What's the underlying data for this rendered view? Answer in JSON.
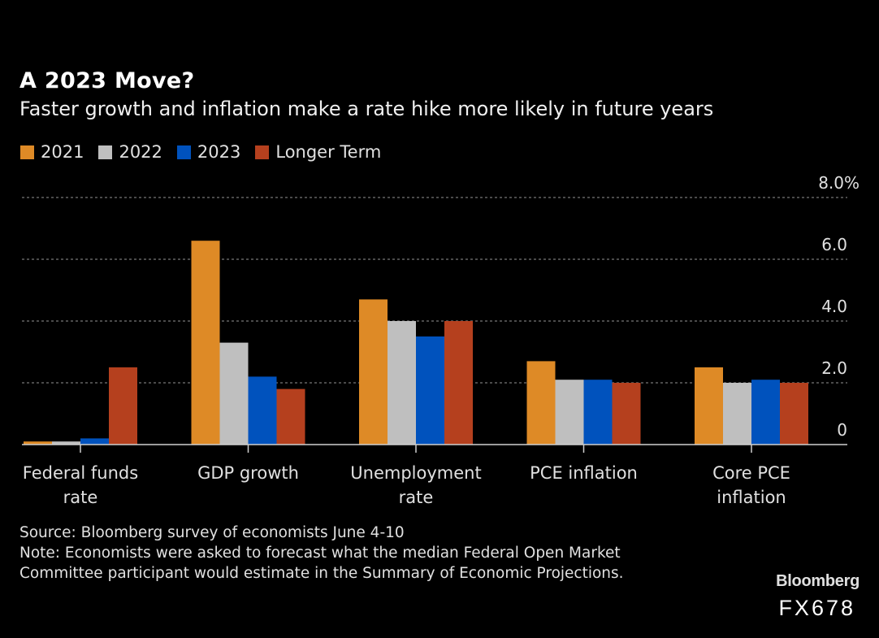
{
  "chart_data": {
    "type": "bar",
    "title": "A 2023 Move?",
    "subtitle": "Faster growth and inflation make a rate hike more likely in future years",
    "categories": [
      [
        "Federal funds",
        "rate"
      ],
      [
        "GDP growth"
      ],
      [
        "Unemployment",
        "rate"
      ],
      [
        "PCE inflation"
      ],
      [
        "Core PCE",
        "inflation"
      ]
    ],
    "series": [
      {
        "name": "2021",
        "color": "#de8a26",
        "values": [
          0.1,
          6.6,
          4.7,
          2.7,
          2.5
        ]
      },
      {
        "name": "2022",
        "color": "#bfbfbf",
        "values": [
          0.1,
          3.3,
          4.0,
          2.1,
          2.0
        ]
      },
      {
        "name": "2023",
        "color": "#0052bd",
        "values": [
          0.2,
          2.2,
          3.5,
          2.1,
          2.1
        ]
      },
      {
        "name": "Longer Term",
        "color": "#b5401e",
        "values": [
          2.5,
          1.8,
          4.0,
          2.0,
          2.0
        ]
      }
    ],
    "xlabel": "",
    "ylabel": "",
    "ylim": [
      0,
      8
    ],
    "yticks": [
      {
        "value": 0,
        "label": "0"
      },
      {
        "value": 2,
        "label": "2.0"
      },
      {
        "value": 4,
        "label": "4.0"
      },
      {
        "value": 6,
        "label": "6.0"
      },
      {
        "value": 8,
        "label": "8.0%"
      }
    ],
    "grid": true,
    "legend": "top-left",
    "y_axis_side": "right"
  },
  "footer": {
    "source": "Source: Bloomberg survey of economists June 4-10",
    "note_line1": "Note: Economists were asked to forecast what the median Federal Open Market",
    "note_line2": "Committee participant would estimate in the Summary of Economic Projections."
  },
  "branding": {
    "logo": "Bloomberg",
    "code": "FX678"
  }
}
